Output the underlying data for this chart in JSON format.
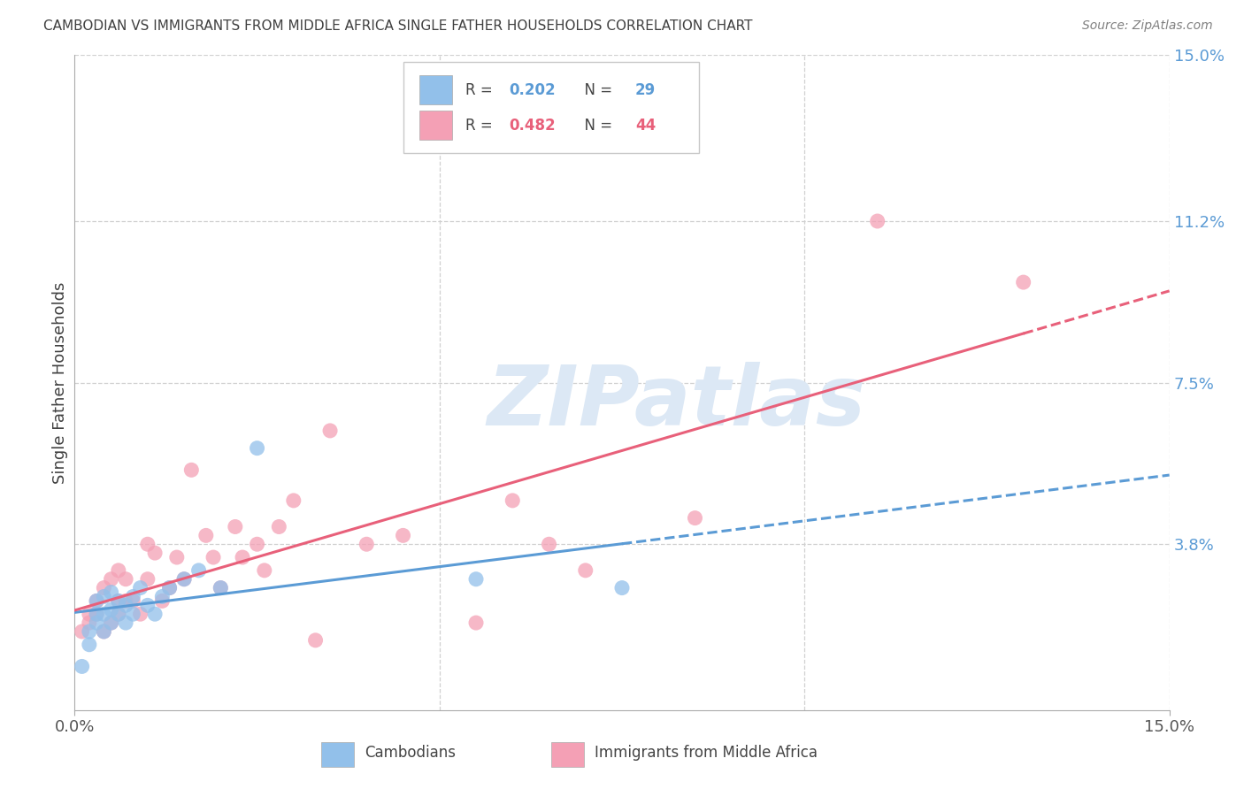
{
  "title": "CAMBODIAN VS IMMIGRANTS FROM MIDDLE AFRICA SINGLE FATHER HOUSEHOLDS CORRELATION CHART",
  "source": "Source: ZipAtlas.com",
  "ylabel": "Single Father Households",
  "ylim": [
    0.0,
    0.15
  ],
  "xlim": [
    0.0,
    0.15
  ],
  "yticks": [
    0.0,
    0.038,
    0.075,
    0.112,
    0.15
  ],
  "ytick_labels_right": [
    "3.8%",
    "7.5%",
    "11.2%",
    "15.0%"
  ],
  "xticks": [
    0.0,
    0.15
  ],
  "xtick_labels": [
    "0.0%",
    "15.0%"
  ],
  "cambodian_R": 0.202,
  "cambodian_N": 29,
  "midafrica_R": 0.482,
  "midafrica_N": 44,
  "cambodian_color": "#92C0EA",
  "midafrica_color": "#F4A0B5",
  "cambodian_line_color": "#5B9BD5",
  "midafrica_line_color": "#E8607A",
  "background_color": "#FFFFFF",
  "grid_color": "#D0D0D0",
  "right_tick_color": "#5B9BD5",
  "title_color": "#404040",
  "source_color": "#808080",
  "ylabel_color": "#404040",
  "watermark_color": "#DCE8F5",
  "watermark_text": "ZIPatlas",
  "legend_R_color_cam": "#5B9BD5",
  "legend_R_color_mid": "#E8607A",
  "legend_N_color": "#5B9BD5",
  "cambodian_x": [
    0.001,
    0.002,
    0.002,
    0.003,
    0.003,
    0.003,
    0.004,
    0.004,
    0.004,
    0.005,
    0.005,
    0.005,
    0.006,
    0.006,
    0.007,
    0.007,
    0.008,
    0.008,
    0.009,
    0.01,
    0.011,
    0.012,
    0.013,
    0.015,
    0.017,
    0.02,
    0.025,
    0.055,
    0.075
  ],
  "cambodian_y": [
    0.01,
    0.015,
    0.018,
    0.02,
    0.022,
    0.025,
    0.018,
    0.022,
    0.026,
    0.02,
    0.023,
    0.027,
    0.022,
    0.025,
    0.02,
    0.024,
    0.022,
    0.026,
    0.028,
    0.024,
    0.022,
    0.026,
    0.028,
    0.03,
    0.032,
    0.028,
    0.06,
    0.03,
    0.028
  ],
  "midafrica_x": [
    0.001,
    0.002,
    0.002,
    0.003,
    0.003,
    0.004,
    0.004,
    0.005,
    0.005,
    0.006,
    0.006,
    0.006,
    0.007,
    0.007,
    0.008,
    0.009,
    0.01,
    0.01,
    0.011,
    0.012,
    0.013,
    0.014,
    0.015,
    0.016,
    0.018,
    0.019,
    0.02,
    0.022,
    0.023,
    0.025,
    0.026,
    0.028,
    0.03,
    0.033,
    0.035,
    0.04,
    0.045,
    0.055,
    0.06,
    0.065,
    0.07,
    0.085,
    0.11,
    0.13
  ],
  "midafrica_y": [
    0.018,
    0.02,
    0.022,
    0.022,
    0.025,
    0.018,
    0.028,
    0.02,
    0.03,
    0.022,
    0.025,
    0.032,
    0.025,
    0.03,
    0.025,
    0.022,
    0.03,
    0.038,
    0.036,
    0.025,
    0.028,
    0.035,
    0.03,
    0.055,
    0.04,
    0.035,
    0.028,
    0.042,
    0.035,
    0.038,
    0.032,
    0.042,
    0.048,
    0.016,
    0.064,
    0.038,
    0.04,
    0.02,
    0.048,
    0.038,
    0.032,
    0.044,
    0.112,
    0.098
  ]
}
